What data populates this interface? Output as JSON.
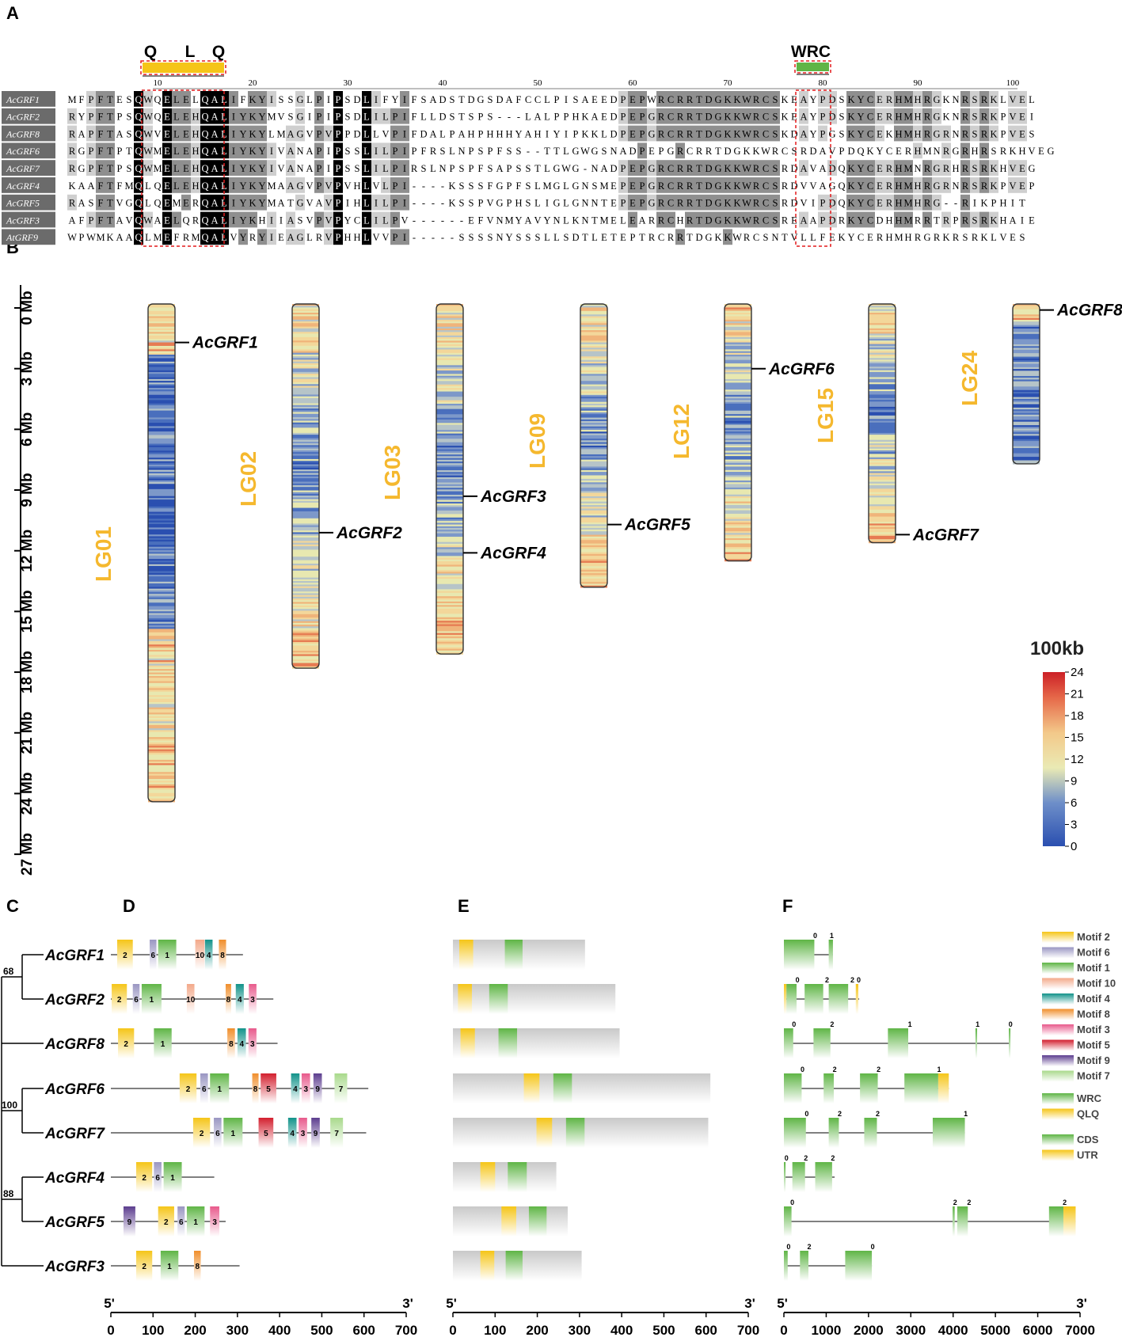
{
  "panels": {
    "A": "A",
    "B": "B",
    "C": "C",
    "D": "D",
    "E": "E",
    "F": "F"
  },
  "alignment": {
    "motif_labels": [
      "Q",
      "L",
      "Q"
    ],
    "wrc_label": "WRC",
    "ruler_ticks": [
      "10",
      "20",
      "30",
      "40",
      "50",
      "60",
      "70",
      "80",
      "90",
      "100"
    ],
    "rows": [
      {
        "name": "AcGRF1",
        "seq": "MFPFTESQWQELELQALIFKYISSGLPIPSDLIFYIFSADSTDGSDAFCCLPISAEEDPEPWRCRRTDGKKWRCSKEAYPDSKYCERHMHRGKNRSRKLVEL"
      },
      {
        "name": "AcGRF2",
        "seq": "RYPFTPSQWQELEHQALIYKYMVSGIPIPSDLILPIFLLDSTSPS---LALPPHKAEDPEPGRCRRTDGKKWRCSKEAYPDSKYCERHMHRGKNRSRKPVEI"
      },
      {
        "name": "AcGRF8",
        "seq": "RAPFTASQWVELEHQALIYKYLMAGVPVPPDLLVPIFDALPAHPHHHYAHIYIPKKLDPEPGRCRRTDGKKWRCSKDAYPGSKYCEKHMHRGRNRSRKPVES"
      },
      {
        "name": "AcGRF6",
        "seq": "RGPFTPTQWMELEHQALIYKYIVANAPIPSSLILPIPFRSLNPSPFSS--TTLGWGSNADPEPGRCRRTDGKKWRCSRDAVPDQKYCERHMNRGRHRSRKHVEG"
      },
      {
        "name": "AcGRF7",
        "seq": "RGPFTPSQWMELEHQALIYKYIVANAPIPSSLILPIRSLNPSPFSAPSSTLGWG-NADPEPGRCRRTDGKKWRCSRDAVADQKYCERHMNRGRHRSRKHVEG"
      },
      {
        "name": "AcGRF4",
        "seq": "KAAFTFMQLQELEHQALIYKYMAAGVPVPVHLVLPI----KSSSFGPFSLMGLGNSMEPEPGRCRRTDGKKWRCSRDVVAGQKYCERHMHRGRNRSRKPVEP"
      },
      {
        "name": "AcGRF5",
        "seq": "RASFTVGQLQEMERQALIYKYMATGVAVPIHLILPI----KSSPVGPHSLIGLGNNTEPEPGRCRRTDGKKWRCSRDVIPDQKYCERHMHRG--RIKPHIT"
      },
      {
        "name": "AcGRF3",
        "seq": "AFPFTAVQWAELQRQALIYKHIIASVPVPYCLILPV------EFVNMYAVYNLKNTMELEARRCHRTDGKKWRCSREAAPDRKYCDHHMRRTRPRSRKHAIE"
      },
      {
        "name": "AtGRF9",
        "seq": "WPWMKAAQLMEFRMQALVYRYIEAGLRVPHHLVVPI-----SSSSNYSSSLLSDTLETEPTRCRRTDGKKWRCSNTVLLFEKYCERHMHRGRKRSRKLVES"
      }
    ]
  },
  "chromosomes": {
    "axis_ticks": [
      "0 Mb",
      "3 Mb",
      "6 Mb",
      "9 Mb",
      "12 Mb",
      "15 Mb",
      "18 Mb",
      "21 Mb",
      "24 Mb",
      "27 Mb"
    ],
    "items": [
      {
        "name": "LG01",
        "length_mb": 24.6,
        "genes": [
          {
            "name": "AcGRF1",
            "pos_mb": 1.9
          }
        ]
      },
      {
        "name": "LG02",
        "length_mb": 18.0,
        "genes": [
          {
            "name": "AcGRF2",
            "pos_mb": 11.3
          }
        ]
      },
      {
        "name": "LG03",
        "length_mb": 17.3,
        "genes": [
          {
            "name": "AcGRF3",
            "pos_mb": 9.5
          },
          {
            "name": "AcGRF4",
            "pos_mb": 12.3
          }
        ]
      },
      {
        "name": "LG09",
        "length_mb": 14.0,
        "genes": [
          {
            "name": "AcGRF5",
            "pos_mb": 10.9
          }
        ]
      },
      {
        "name": "LG12",
        "length_mb": 12.7,
        "genes": [
          {
            "name": "AcGRF6",
            "pos_mb": 3.2
          }
        ]
      },
      {
        "name": "LG15",
        "length_mb": 11.8,
        "genes": [
          {
            "name": "AcGRF7",
            "pos_mb": 11.4
          }
        ]
      },
      {
        "name": "LG24",
        "length_mb": 7.9,
        "genes": [
          {
            "name": "AcGRF8",
            "pos_mb": 0.3
          }
        ]
      }
    ],
    "density_legend": {
      "title": "100kb",
      "ticks": [
        "24",
        "21",
        "18",
        "15",
        "12",
        "9",
        "6",
        "3",
        "0"
      ]
    }
  },
  "tree": {
    "bootstraps": [
      "68",
      "100",
      "88"
    ]
  },
  "genes": [
    {
      "name": "AcGRF1",
      "protein_len": 313,
      "motifs": [
        {
          "m": 2,
          "s": 15,
          "e": 52
        },
        {
          "m": 6,
          "s": 92,
          "e": 108
        },
        {
          "m": 1,
          "s": 112,
          "e": 155
        },
        {
          "m": 10,
          "s": 200,
          "e": 222
        },
        {
          "m": 4,
          "s": 223,
          "e": 241
        },
        {
          "m": 8,
          "s": 256,
          "e": 273
        }
      ],
      "domains": [
        {
          "t": "QLQ",
          "s": 15,
          "e": 48
        },
        {
          "t": "WRC",
          "s": 123,
          "e": 165
        }
      ],
      "structure": {
        "total": 1160,
        "segs": [
          {
            "t": "CDS",
            "s": 0,
            "e": 720
          },
          {
            "t": "CDS",
            "s": 1060,
            "e": 1160
          }
        ],
        "phases": [
          {
            "p": "0",
            "x": 740
          },
          {
            "p": "1",
            "x": 1130
          }
        ]
      }
    },
    {
      "name": "AcGRF2",
      "protein_len": 385,
      "motifs": [
        {
          "m": 2,
          "s": 2,
          "e": 38
        },
        {
          "m": 6,
          "s": 52,
          "e": 68
        },
        {
          "m": 1,
          "s": 73,
          "e": 120
        },
        {
          "m": 10,
          "s": 180,
          "e": 198
        },
        {
          "m": 8,
          "s": 272,
          "e": 285
        },
        {
          "m": 4,
          "s": 296,
          "e": 315
        },
        {
          "m": 3,
          "s": 327,
          "e": 345
        }
      ],
      "domains": [
        {
          "t": "QLQ",
          "s": 12,
          "e": 45
        },
        {
          "t": "WRC",
          "s": 86,
          "e": 130
        }
      ],
      "structure": {
        "total": 1780,
        "segs": [
          {
            "t": "UTR",
            "s": 0,
            "e": 60
          },
          {
            "t": "CDS",
            "s": 60,
            "e": 300
          },
          {
            "t": "CDS",
            "s": 490,
            "e": 930
          },
          {
            "t": "CDS",
            "s": 1060,
            "e": 1520
          },
          {
            "t": "UTR",
            "s": 1700,
            "e": 1760
          }
        ],
        "phases": [
          {
            "p": "0",
            "x": 320
          },
          {
            "p": "2",
            "x": 1020
          },
          {
            "p": "2",
            "x": 1620
          },
          {
            "p": "0",
            "x": 1770
          }
        ]
      }
    },
    {
      "name": "AcGRF8",
      "protein_len": 395,
      "motifs": [
        {
          "m": 2,
          "s": 17,
          "e": 55
        },
        {
          "m": 1,
          "s": 102,
          "e": 144
        },
        {
          "m": 8,
          "s": 276,
          "e": 294
        },
        {
          "m": 4,
          "s": 300,
          "e": 320
        },
        {
          "m": 3,
          "s": 326,
          "e": 345
        }
      ],
      "domains": [
        {
          "t": "QLQ",
          "s": 18,
          "e": 52
        },
        {
          "t": "WRC",
          "s": 108,
          "e": 152
        }
      ],
      "structure": {
        "total": 5350,
        "segs": [
          {
            "t": "CDS",
            "s": 0,
            "e": 220
          },
          {
            "t": "CDS",
            "s": 700,
            "e": 1100
          },
          {
            "t": "CDS",
            "s": 2460,
            "e": 2940
          },
          {
            "t": "CDS",
            "s": 4530,
            "e": 4570
          },
          {
            "t": "CDS",
            "s": 5320,
            "e": 5350
          }
        ],
        "phases": [
          {
            "p": "0",
            "x": 240
          },
          {
            "p": "2",
            "x": 1140
          },
          {
            "p": "1",
            "x": 2980
          },
          {
            "p": "1",
            "x": 4580
          },
          {
            "p": "0",
            "x": 5360
          }
        ]
      }
    },
    {
      "name": "AcGRF6",
      "protein_len": 610,
      "motifs": [
        {
          "m": 2,
          "s": 163,
          "e": 203
        },
        {
          "m": 6,
          "s": 212,
          "e": 230
        },
        {
          "m": 1,
          "s": 235,
          "e": 280
        },
        {
          "m": 8,
          "s": 335,
          "e": 350
        },
        {
          "m": 5,
          "s": 355,
          "e": 392
        },
        {
          "m": 4,
          "s": 427,
          "e": 447
        },
        {
          "m": 3,
          "s": 452,
          "e": 472
        },
        {
          "m": 9,
          "s": 480,
          "e": 500
        },
        {
          "m": 7,
          "s": 530,
          "e": 560
        }
      ],
      "domains": [
        {
          "t": "QLQ",
          "s": 168,
          "e": 205
        },
        {
          "t": "WRC",
          "s": 238,
          "e": 282
        }
      ],
      "structure": {
        "total": 3900,
        "segs": [
          {
            "t": "CDS",
            "s": 0,
            "e": 420
          },
          {
            "t": "CDS",
            "s": 940,
            "e": 1180
          },
          {
            "t": "CDS",
            "s": 1800,
            "e": 2220
          },
          {
            "t": "CDS",
            "s": 2850,
            "e": 3650
          },
          {
            "t": "UTR",
            "s": 3650,
            "e": 3900
          }
        ],
        "phases": [
          {
            "p": "0",
            "x": 440
          },
          {
            "p": "2",
            "x": 1200
          },
          {
            "p": "2",
            "x": 2240
          },
          {
            "p": "1",
            "x": 3670
          }
        ]
      }
    },
    {
      "name": "AcGRF7",
      "protein_len": 605,
      "motifs": [
        {
          "m": 2,
          "s": 195,
          "e": 235
        },
        {
          "m": 6,
          "s": 244,
          "e": 262
        },
        {
          "m": 1,
          "s": 267,
          "e": 312
        },
        {
          "m": 5,
          "s": 350,
          "e": 385
        },
        {
          "m": 4,
          "s": 420,
          "e": 440
        },
        {
          "m": 3,
          "s": 445,
          "e": 465
        },
        {
          "m": 9,
          "s": 475,
          "e": 495
        },
        {
          "m": 7,
          "s": 520,
          "e": 550
        }
      ],
      "domains": [
        {
          "t": "QLQ",
          "s": 198,
          "e": 235
        },
        {
          "t": "WRC",
          "s": 268,
          "e": 312
        }
      ],
      "structure": {
        "total": 4280,
        "segs": [
          {
            "t": "CDS",
            "s": 0,
            "e": 520
          },
          {
            "t": "CDS",
            "s": 1060,
            "e": 1300
          },
          {
            "t": "CDS",
            "s": 1900,
            "e": 2200
          },
          {
            "t": "CDS",
            "s": 3520,
            "e": 4280
          }
        ],
        "phases": [
          {
            "p": "0",
            "x": 540
          },
          {
            "p": "2",
            "x": 1320
          },
          {
            "p": "2",
            "x": 2220
          },
          {
            "p": "1",
            "x": 4300
          }
        ]
      }
    },
    {
      "name": "AcGRF4",
      "protein_len": 245,
      "motifs": [
        {
          "m": 2,
          "s": 60,
          "e": 98
        },
        {
          "m": 6,
          "s": 102,
          "e": 120
        },
        {
          "m": 1,
          "s": 125,
          "e": 168
        }
      ],
      "domains": [
        {
          "t": "QLQ",
          "s": 65,
          "e": 100
        },
        {
          "t": "WRC",
          "s": 130,
          "e": 175
        }
      ],
      "structure": {
        "total": 1200,
        "segs": [
          {
            "t": "CDS",
            "s": 0,
            "e": 40
          },
          {
            "t": "CDS",
            "s": 200,
            "e": 500
          },
          {
            "t": "CDS",
            "s": 740,
            "e": 1140
          }
        ],
        "phases": [
          {
            "p": "0",
            "x": 60
          },
          {
            "p": "2",
            "x": 520
          },
          {
            "p": "2",
            "x": 1160
          }
        ]
      }
    },
    {
      "name": "AcGRF5",
      "protein_len": 272,
      "motifs": [
        {
          "m": 9,
          "s": 30,
          "e": 58
        },
        {
          "m": 2,
          "s": 112,
          "e": 150
        },
        {
          "m": 6,
          "s": 158,
          "e": 175
        },
        {
          "m": 1,
          "s": 180,
          "e": 222
        },
        {
          "m": 3,
          "s": 235,
          "e": 257
        }
      ],
      "domains": [
        {
          "t": "QLQ",
          "s": 115,
          "e": 150
        },
        {
          "t": "WRC",
          "s": 180,
          "e": 222
        }
      ],
      "structure": {
        "total": 6900,
        "segs": [
          {
            "t": "CDS",
            "s": 0,
            "e": 180
          },
          {
            "t": "CDS",
            "s": 3990,
            "e": 4040
          },
          {
            "t": "CDS",
            "s": 4100,
            "e": 4350
          },
          {
            "t": "CDS",
            "s": 6270,
            "e": 6610
          },
          {
            "t": "UTR",
            "s": 6610,
            "e": 6900
          }
        ],
        "phases": [
          {
            "p": "0",
            "x": 200
          },
          {
            "p": "2",
            "x": 4050
          },
          {
            "p": "2",
            "x": 4380
          },
          {
            "p": "2",
            "x": 6640
          }
        ]
      }
    },
    {
      "name": "AcGRF3",
      "protein_len": 305,
      "motifs": [
        {
          "m": 2,
          "s": 60,
          "e": 98
        },
        {
          "m": 1,
          "s": 118,
          "e": 160
        },
        {
          "m": 8,
          "s": 197,
          "e": 213
        }
      ],
      "domains": [
        {
          "t": "QLQ",
          "s": 65,
          "e": 98
        },
        {
          "t": "WRC",
          "s": 125,
          "e": 165
        }
      ],
      "structure": {
        "total": 2080,
        "segs": [
          {
            "t": "CDS",
            "s": 0,
            "e": 90
          },
          {
            "t": "CDS",
            "s": 380,
            "e": 580
          },
          {
            "t": "CDS",
            "s": 1450,
            "e": 2080
          }
        ],
        "phases": [
          {
            "p": "0",
            "x": 110
          },
          {
            "p": "2",
            "x": 600
          },
          {
            "p": "0",
            "x": 2100
          }
        ]
      }
    }
  ],
  "legend_motifs": [
    {
      "m": 2,
      "label": "Motif 2",
      "color": "#f5c518"
    },
    {
      "m": 6,
      "label": "Motif 6",
      "color": "#9a96c2"
    },
    {
      "m": 1,
      "label": "Motif 1",
      "color": "#5fb546"
    },
    {
      "m": 10,
      "label": "Motif 10",
      "color": "#f3a98a"
    },
    {
      "m": 4,
      "label": "Motif 4",
      "color": "#12938a"
    },
    {
      "m": 8,
      "label": "Motif 8",
      "color": "#f08f2c"
    },
    {
      "m": 3,
      "label": "Motif 3",
      "color": "#e85a8c"
    },
    {
      "m": 5,
      "label": "Motif 5",
      "color": "#d31f2e"
    },
    {
      "m": 9,
      "label": "Motif 9",
      "color": "#5c3d8f"
    },
    {
      "m": 7,
      "label": "Motif 7",
      "color": "#a9d98c"
    }
  ],
  "legend_domains": [
    {
      "t": "WRC",
      "label": "WRC",
      "color": "#5fb546"
    },
    {
      "t": "QLQ",
      "label": "QLQ",
      "color": "#f5c518"
    }
  ],
  "legend_structure": [
    {
      "t": "CDS",
      "label": "CDS",
      "color": "#5fb546"
    },
    {
      "t": "UTR",
      "label": "UTR",
      "color": "#f5c518"
    }
  ],
  "axes": {
    "five_prime": "5'",
    "three_prime": "3'",
    "d_ticks": [
      "0",
      "100",
      "200",
      "300",
      "400",
      "500",
      "600",
      "700"
    ],
    "e_ticks": [
      "0",
      "100",
      "200",
      "300",
      "400",
      "500",
      "600",
      "700"
    ],
    "f_ticks": [
      "0",
      "1000",
      "2000",
      "3000",
      "4000",
      "5000",
      "6000",
      "7000"
    ]
  }
}
